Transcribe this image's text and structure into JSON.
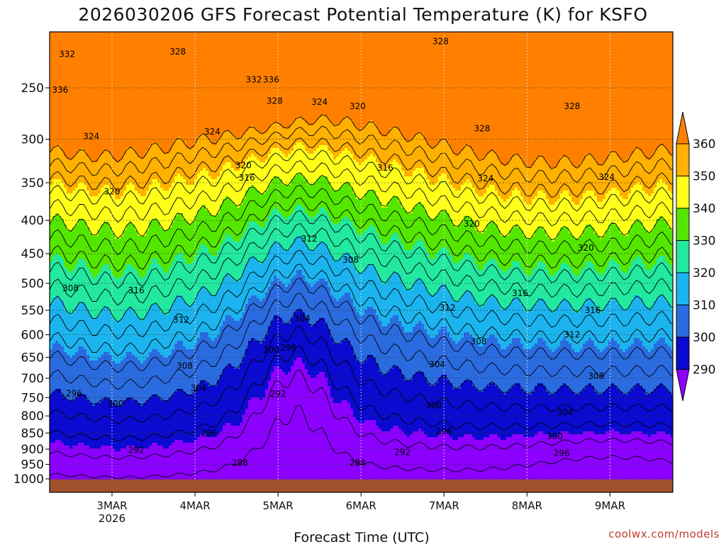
{
  "chart_data": {
    "type": "area",
    "title": "2026030206 GFS Forecast Potential Temperature (K) for KSFO",
    "xlabel": "Forecast Time (UTC)",
    "ylabel": "",
    "x_ticks": [
      {
        "label": "3MAR",
        "sublabel": "2026",
        "t": 0
      },
      {
        "label": "4MAR",
        "t": 24
      },
      {
        "label": "5MAR",
        "t": 48
      },
      {
        "label": "6MAR",
        "t": 72
      },
      {
        "label": "7MAR",
        "t": 96
      },
      {
        "label": "8MAR",
        "t": 120
      },
      {
        "label": "9MAR",
        "t": 144
      }
    ],
    "xlim": [
      -18,
      163
    ],
    "y_scale": "log-pressure (hPa, inverted)",
    "y_ticks": [
      250,
      300,
      350,
      400,
      450,
      500,
      550,
      600,
      650,
      700,
      750,
      800,
      850,
      900,
      950,
      1000
    ],
    "ylim": [
      1025,
      200
    ],
    "grid": true,
    "colorbar": {
      "levels": [
        290,
        300,
        310,
        320,
        330,
        340,
        350,
        360
      ],
      "labels": [
        "360",
        "350",
        "340",
        "330",
        "320",
        "310",
        "300",
        "290"
      ],
      "colors": [
        "#8b00ff",
        "#0a0ad0",
        "#2b6be0",
        "#1cb4ee",
        "#22e8a0",
        "#55e600",
        "#ffff1a",
        "#ffb000",
        "#ff8000"
      ],
      "placement": "right"
    },
    "contour_interval": 4,
    "contour_labels": [
      {
        "text": "332",
        "t": -13,
        "p": 222
      },
      {
        "text": "328",
        "t": 19,
        "p": 220
      },
      {
        "text": "328",
        "t": 95,
        "p": 212
      },
      {
        "text": "336",
        "t": -15,
        "p": 252
      },
      {
        "text": "332",
        "t": 41,
        "p": 243
      },
      {
        "text": "336",
        "t": 46,
        "p": 243
      },
      {
        "text": "328",
        "t": 47,
        "p": 262
      },
      {
        "text": "324",
        "t": 60,
        "p": 263
      },
      {
        "text": "320",
        "t": 71,
        "p": 267
      },
      {
        "text": "324",
        "t": 29,
        "p": 292
      },
      {
        "text": "324",
        "t": -6,
        "p": 297
      },
      {
        "text": "328",
        "t": 107,
        "p": 289
      },
      {
        "text": "328",
        "t": 133,
        "p": 267
      },
      {
        "text": "320",
        "t": 38,
        "p": 329
      },
      {
        "text": "316",
        "t": 39,
        "p": 344
      },
      {
        "text": "316",
        "t": 79,
        "p": 332
      },
      {
        "text": "324",
        "t": 108,
        "p": 345
      },
      {
        "text": "324",
        "t": 143,
        "p": 343
      },
      {
        "text": "320",
        "t": 0,
        "p": 361
      },
      {
        "text": "320",
        "t": 104,
        "p": 405
      },
      {
        "text": "312",
        "t": 57,
        "p": 427
      },
      {
        "text": "308",
        "t": 69,
        "p": 460
      },
      {
        "text": "320",
        "t": 137,
        "p": 441
      },
      {
        "text": "308",
        "t": -12,
        "p": 509
      },
      {
        "text": "316",
        "t": 7,
        "p": 513
      },
      {
        "text": "316",
        "t": 118,
        "p": 518
      },
      {
        "text": "312",
        "t": 97,
        "p": 545
      },
      {
        "text": "316",
        "t": 139,
        "p": 550
      },
      {
        "text": "304",
        "t": 55,
        "p": 566
      },
      {
        "text": "312",
        "t": 20,
        "p": 569
      },
      {
        "text": "312",
        "t": 133,
        "p": 600
      },
      {
        "text": "308",
        "t": 106,
        "p": 614
      },
      {
        "text": "300",
        "t": 46,
        "p": 633
      },
      {
        "text": "296",
        "t": 51,
        "p": 628
      },
      {
        "text": "308",
        "t": 21,
        "p": 670
      },
      {
        "text": "304",
        "t": 94,
        "p": 667
      },
      {
        "text": "308",
        "t": 140,
        "p": 695
      },
      {
        "text": "304",
        "t": 25,
        "p": 725
      },
      {
        "text": "296",
        "t": -11,
        "p": 739
      },
      {
        "text": "292",
        "t": 48,
        "p": 740
      },
      {
        "text": "300",
        "t": 1,
        "p": 766
      },
      {
        "text": "300",
        "t": 93,
        "p": 771
      },
      {
        "text": "304",
        "t": 131,
        "p": 790
      },
      {
        "text": "296",
        "t": 28,
        "p": 850
      },
      {
        "text": "296",
        "t": 96,
        "p": 845
      },
      {
        "text": "300",
        "t": 128,
        "p": 860
      },
      {
        "text": "292",
        "t": 7,
        "p": 903
      },
      {
        "text": "292",
        "t": 84,
        "p": 910
      },
      {
        "text": "296",
        "t": 130,
        "p": 913
      },
      {
        "text": "288",
        "t": 37,
        "p": 945
      },
      {
        "text": "288",
        "t": 71,
        "p": 945
      }
    ]
  },
  "credit": "coolwx.com/models"
}
